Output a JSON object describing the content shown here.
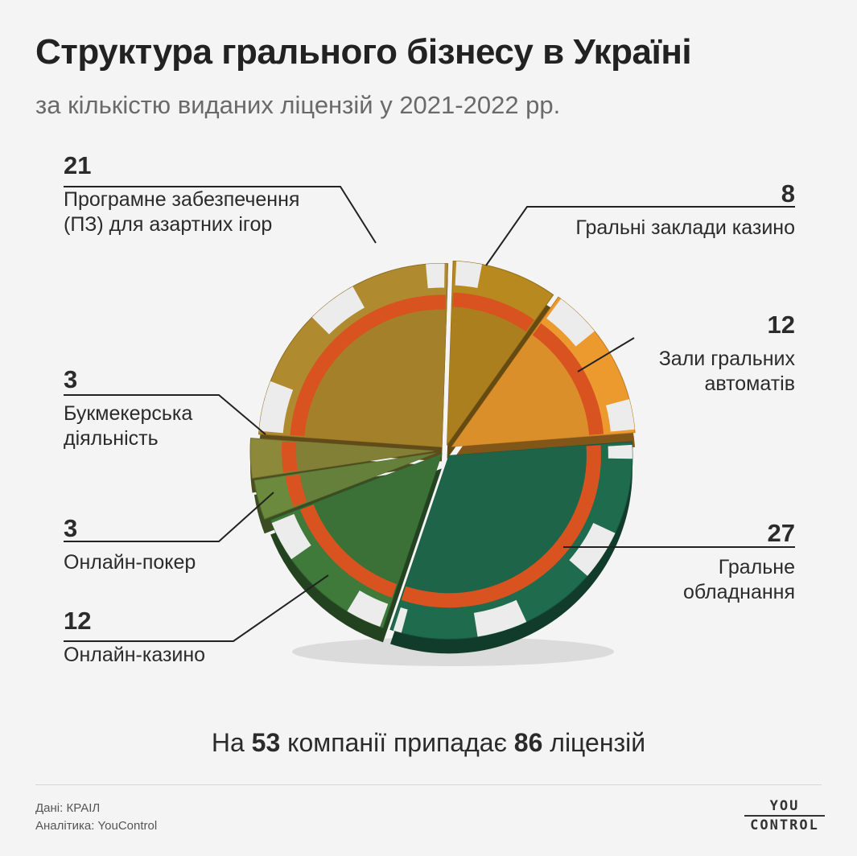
{
  "title": "Структура грального бізнесу в Україні",
  "subtitle": "за кількістю виданих ліцензій у 2021-2022 рр.",
  "chart_data": {
    "type": "pie",
    "style": "3d casino chip, exploded slices",
    "slices": [
      {
        "label": "Програмне забезпечення (ПЗ) для азартних ігор",
        "value": 21,
        "color": "#b08a2e"
      },
      {
        "label": "Гральні заклади казино",
        "value": 8,
        "color": "#b8891f"
      },
      {
        "label": "Зали гральних автоматів",
        "value": 12,
        "color": "#ec9a2e"
      },
      {
        "label": "Гральне обладнання",
        "value": 27,
        "color": "#1f6b4d"
      },
      {
        "label": "Онлайн-казино",
        "value": 12,
        "color": "#3f7a3a"
      },
      {
        "label": "Онлайн-покер",
        "value": 3,
        "color": "#6b8a3e"
      },
      {
        "label": "Букмекерська діяльність",
        "value": 3,
        "color": "#8c8a3a"
      }
    ]
  },
  "labels": {
    "software": {
      "num": "21",
      "text1": "Програмне забезпечення",
      "text2": "(ПЗ) для азартних ігор"
    },
    "casino": {
      "num": "8",
      "text1": "Гральні заклади казино"
    },
    "slots": {
      "num": "12",
      "text1": "Зали гральних",
      "text2": "автоматів"
    },
    "betting": {
      "num": "3",
      "text1": "Букмекерська",
      "text2": "діяльність"
    },
    "poker": {
      "num": "3",
      "text1": "Онлайн-покер"
    },
    "online_casino": {
      "num": "12",
      "text1": "Онлайн-казино"
    },
    "equipment": {
      "num": "27",
      "text1": "Гральне",
      "text2": "обладнання"
    }
  },
  "summary": {
    "pre": "На",
    "companies": "53",
    "mid": "компанії припадає",
    "licenses": "86",
    "post": "ліцензій"
  },
  "footer": {
    "source": "Дані: КРАІЛ",
    "analytics": "Аналітика: YouControl",
    "logo_top": "YOU",
    "logo_bottom": "CONTROL"
  }
}
